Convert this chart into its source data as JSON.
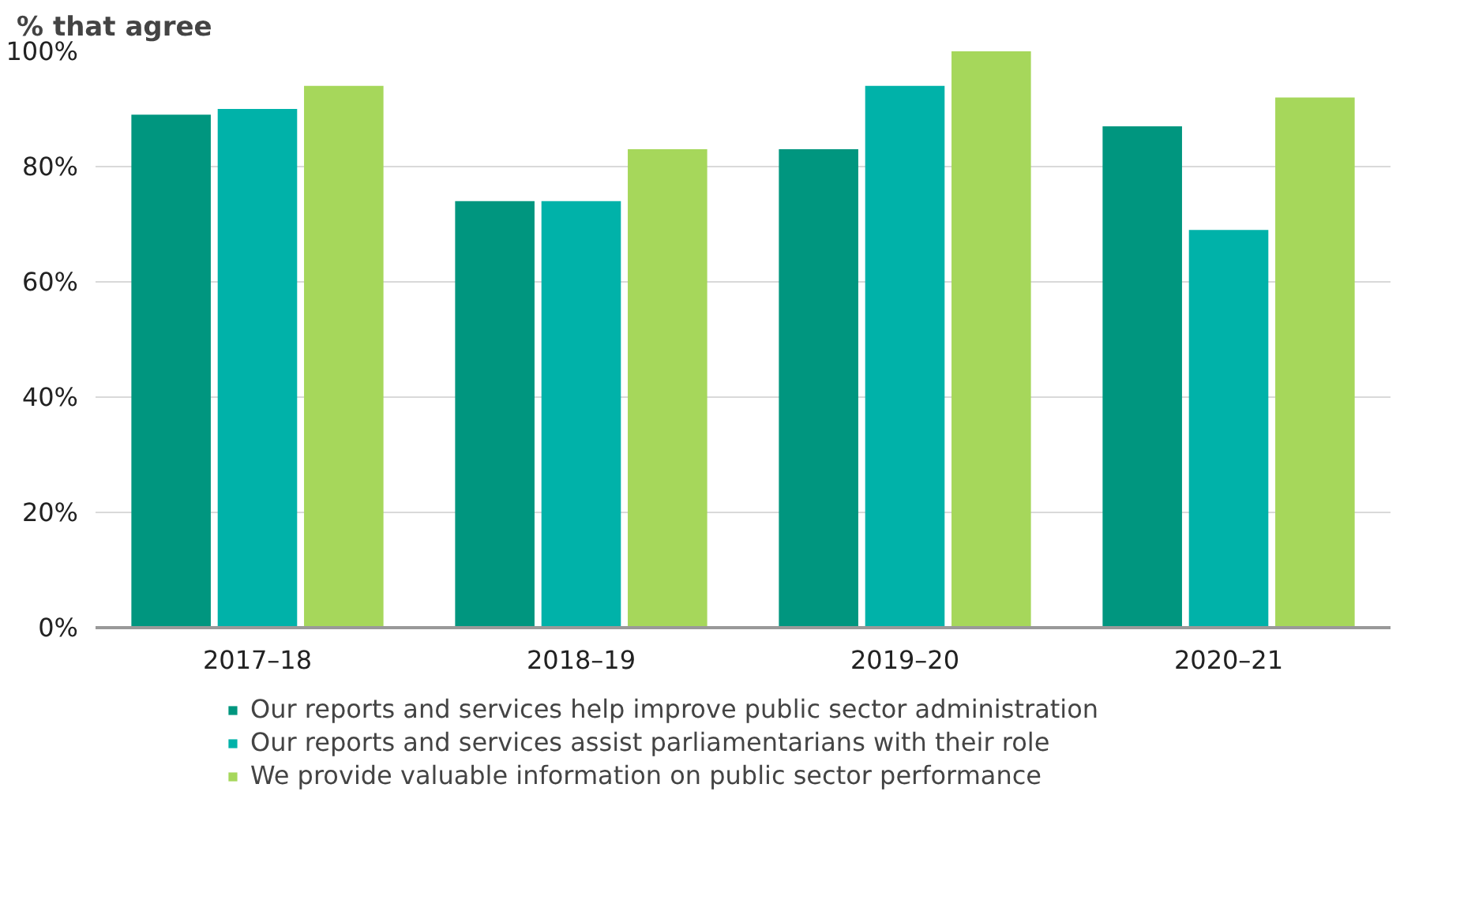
{
  "chart_data": {
    "type": "bar",
    "ylabel": "% that agree",
    "categories": [
      "2017–18",
      "2018–19",
      "2019–20",
      "2020–21"
    ],
    "series": [
      {
        "name": "Our reports and services help improve public sector administration",
        "color": "#00967f",
        "values": [
          89,
          74,
          83,
          87
        ]
      },
      {
        "name": "Our reports and services assist parliamentarians with their role",
        "color": "#00b2a9",
        "values": [
          90,
          74,
          94,
          69
        ]
      },
      {
        "name": "We provide valuable information on public sector performance",
        "color": "#a6d75b",
        "values": [
          94,
          83,
          100,
          92
        ]
      }
    ],
    "ylim": [
      0,
      100
    ],
    "yticks": [
      {
        "value": 0,
        "label": "0%"
      },
      {
        "value": 20,
        "label": "20%"
      },
      {
        "value": 40,
        "label": "40%"
      },
      {
        "value": 60,
        "label": "60%"
      },
      {
        "value": 80,
        "label": "80%"
      },
      {
        "value": 100,
        "label": "100%"
      }
    ],
    "grid": "y",
    "legend": "bottom"
  }
}
